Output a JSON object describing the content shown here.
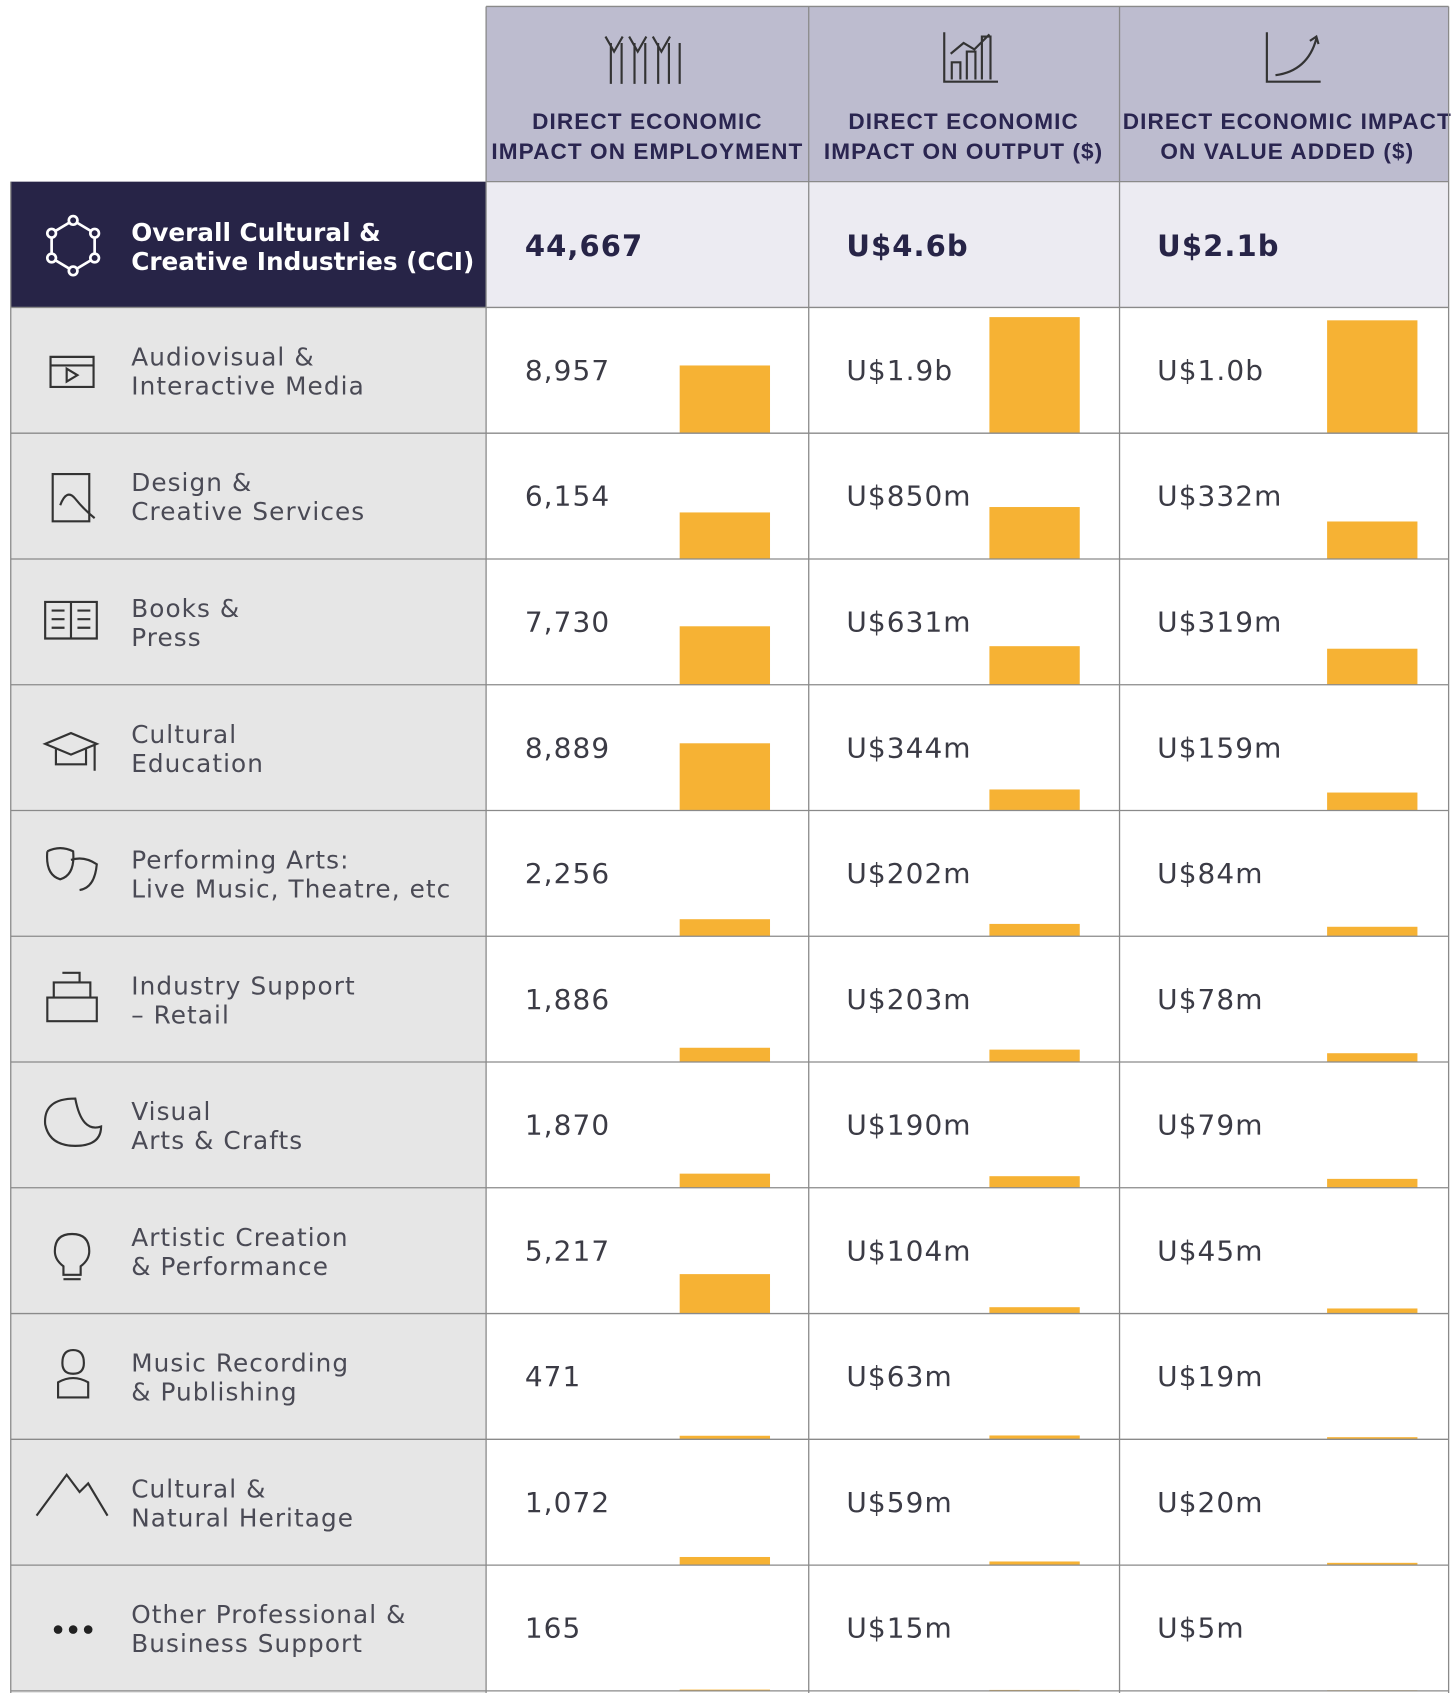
{
  "table": {
    "columns": [
      {
        "title_lines": [
          "DIRECT ECONOMIC",
          "IMPACT ON EMPLOYMENT"
        ],
        "total": 44667,
        "total_label": "44,667",
        "values": [
          8957,
          6154,
          7730,
          8889,
          2256,
          1886,
          1870,
          5217,
          471,
          1072,
          165
        ],
        "value_labels": [
          "8,957",
          "6,154",
          "7,730",
          "8,889",
          "2,256",
          "1,886",
          "1,870",
          "5,217",
          "471",
          "1,072",
          "165"
        ]
      },
      {
        "title_lines": [
          "DIRECT ECONOMIC",
          "IMPACT ON OUTPUT ($)"
        ],
        "total": 4600000000,
        "total_label": "U$4.6b",
        "values": [
          1900000000,
          850000000,
          631000000,
          344000000,
          202000000,
          203000000,
          190000000,
          104000000,
          63000000,
          59000000,
          15000000
        ],
        "value_labels": [
          "U$1.9b",
          "U$850m",
          "U$631m",
          "U$344m",
          "U$202m",
          "U$203m",
          "U$190m",
          "U$104m",
          "U$63m",
          "U$59m",
          "U$15m"
        ]
      },
      {
        "title_lines": [
          "DIRECT ECONOMIC IMPACT",
          "ON VALUE ADDED ($)"
        ],
        "total": 2100000000,
        "total_label": "U$2.1b",
        "values": [
          1000000000,
          332000000,
          319000000,
          159000000,
          84000000,
          78000000,
          79000000,
          45000000,
          19000000,
          20000000,
          5000000
        ],
        "value_labels": [
          "U$1.0b",
          "U$332m",
          "U$319m",
          "U$159m",
          "U$84m",
          "U$78m",
          "U$79m",
          "U$45m",
          "U$19m",
          "U$20m",
          "U$5m"
        ]
      }
    ],
    "total_label_lines": [
      "Overall Cultural &",
      "Creative Industries (CCI)"
    ],
    "rows": [
      [
        "Audiovisual &",
        "Interactive Media"
      ],
      [
        "Design &",
        "Creative Services"
      ],
      [
        "Books &",
        "Press"
      ],
      [
        "Cultural",
        "Education"
      ],
      [
        "Performing Arts:",
        "Live Music, Theatre, etc"
      ],
      [
        "Industry Support",
        "– Retail"
      ],
      [
        "Visual",
        "Arts & Crafts"
      ],
      [
        "Artistic Creation",
        "& Performance"
      ],
      [
        "Music Recording",
        "& Publishing"
      ],
      [
        "Cultural &",
        "Natural Heritage"
      ],
      [
        "Other Professional &",
        "Business Support"
      ]
    ]
  }
}
